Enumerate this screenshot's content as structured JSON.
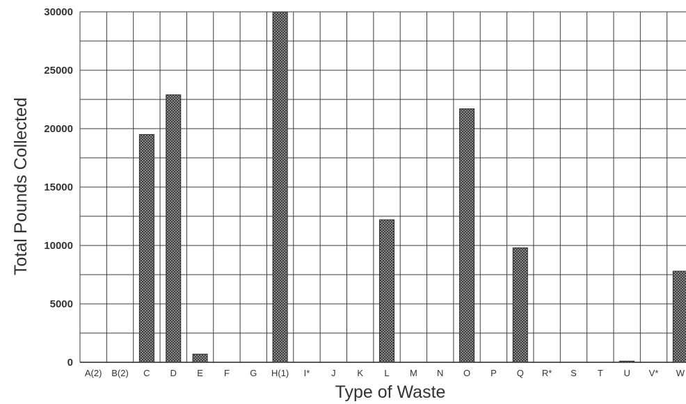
{
  "chart_data": {
    "type": "bar",
    "xlabel": "Type of Waste",
    "ylabel": "Total Pounds Collected",
    "ylim": [
      0,
      30000
    ],
    "yticks": [
      0,
      5000,
      10000,
      15000,
      20000,
      25000,
      30000
    ],
    "grid": true,
    "categories": [
      "A(2)",
      "B(2)",
      "C",
      "D",
      "E",
      "F",
      "G",
      "H(1)",
      "I*",
      "J",
      "K",
      "L",
      "M",
      "N",
      "O",
      "P",
      "Q",
      "R*",
      "S",
      "T",
      "U",
      "V*",
      "W"
    ],
    "values": [
      0,
      0,
      19500,
      22900,
      700,
      0,
      0,
      30000,
      0,
      0,
      0,
      12200,
      0,
      0,
      21700,
      0,
      9800,
      0,
      0,
      0,
      100,
      0,
      7800
    ],
    "colors": {
      "bar": "#6e6e6e",
      "grid": "#3a3a3a"
    }
  }
}
